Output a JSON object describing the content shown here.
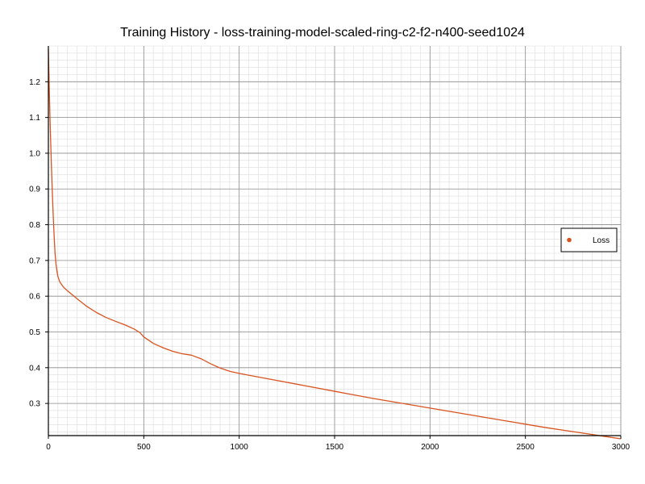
{
  "colors": {
    "series": "#d9531e",
    "grid_major": "#8c8c8c",
    "grid_minor": "#dcdcdc",
    "axis": "#000000",
    "background": "#ffffff"
  },
  "chart_data": {
    "type": "line",
    "title": "Training History - loss-training-model-scaled-ring-c2-f2-n400-seed1024",
    "xlabel": "",
    "ylabel": "",
    "xlim": [
      0,
      3000
    ],
    "ylim": [
      0.21,
      1.3
    ],
    "xticks": [
      0,
      500,
      1000,
      1500,
      2000,
      2500,
      3000
    ],
    "xtick_labels": [
      "0",
      "500",
      "1000",
      "1500",
      "2000",
      "2500",
      "3000"
    ],
    "yticks": [
      0.3,
      0.4,
      0.5,
      0.6,
      0.7,
      0.8,
      0.9,
      1.0,
      1.1,
      1.2
    ],
    "ytick_labels": [
      "0.3",
      "0.4",
      "0.5",
      "0.6",
      "0.7",
      "0.8",
      "0.9",
      "1.0",
      "1.1",
      "1.2"
    ],
    "grid": true,
    "minor_grid": true,
    "legend_position": "right",
    "series": [
      {
        "name": "Loss",
        "color": "#d9531e",
        "x": [
          0,
          5,
          10,
          15,
          20,
          25,
          30,
          35,
          40,
          45,
          50,
          60,
          70,
          80,
          90,
          100,
          150,
          200,
          250,
          300,
          350,
          400,
          450,
          480,
          500,
          550,
          600,
          650,
          700,
          750,
          800,
          850,
          900,
          950,
          1000,
          1100,
          1200,
          1300,
          1400,
          1500,
          1600,
          1700,
          1800,
          1900,
          2000,
          2100,
          2200,
          2300,
          2400,
          2500,
          2600,
          2700,
          2800,
          2900,
          3000
        ],
        "y": [
          1.29,
          1.17,
          1.07,
          0.98,
          0.9,
          0.83,
          0.77,
          0.72,
          0.69,
          0.67,
          0.655,
          0.64,
          0.632,
          0.625,
          0.62,
          0.615,
          0.593,
          0.572,
          0.555,
          0.541,
          0.53,
          0.52,
          0.508,
          0.498,
          0.486,
          0.468,
          0.456,
          0.446,
          0.439,
          0.435,
          0.425,
          0.411,
          0.399,
          0.39,
          0.384,
          0.374,
          0.364,
          0.354,
          0.344,
          0.334,
          0.324,
          0.314,
          0.305,
          0.296,
          0.287,
          0.278,
          0.269,
          0.26,
          0.251,
          0.242,
          0.233,
          0.225,
          0.217,
          0.209,
          0.201
        ]
      }
    ]
  }
}
